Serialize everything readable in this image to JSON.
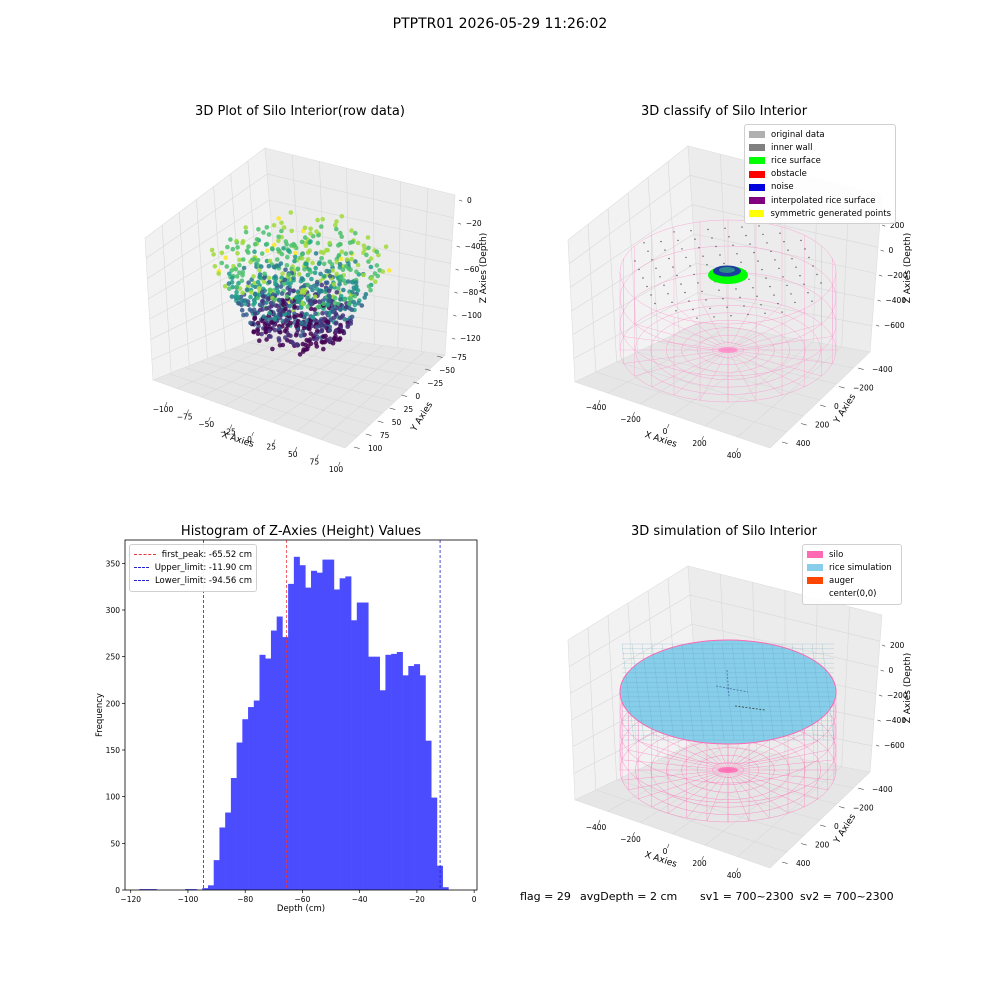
{
  "figure_title": "PTPTR01 2026-05-29 11:26:02",
  "status": {
    "flag": "flag = 29",
    "avg_depth": "avgDepth = 2 cm",
    "sv1": "sv1 = 700~2300",
    "sv2": "sv2 = 700~2300"
  },
  "colors": {
    "histogram_bar": "#4c4cff",
    "first_peak": "#e8383d",
    "limits": "#2222cc",
    "silo": "#ff69b4",
    "rice_simulation": "#87ceeb",
    "auger": "#ff4500",
    "original_data": "#b0b0b0",
    "inner_wall": "#808080",
    "rice_surface": "#00ff00",
    "obstacle": "#ff0000",
    "noise": "#0000dd",
    "interpolated_rice_surface": "#800080",
    "symmetric_generated_points": "#ffff00"
  },
  "chart_data": [
    {
      "type": "scatter",
      "title": "3D Plot of Silo Interior(row data)",
      "projection": "3d",
      "xlabel": "X Axies",
      "ylabel": "Y Axies",
      "zlabel": "Z Axies (Depth)",
      "x_ticks": [
        "−100",
        "−75",
        "−50",
        "−25",
        "0",
        "25",
        "50",
        "75",
        "100"
      ],
      "y_ticks": [
        "−75",
        "−50",
        "−25",
        "0",
        "25",
        "50",
        "75",
        "100"
      ],
      "z_ticks": [
        "0",
        "−20",
        "−40",
        "−60",
        "−80",
        "−100",
        "−120"
      ],
      "xlim": [
        -110,
        100
      ],
      "ylim": [
        -85,
        100
      ],
      "zlim": [
        -125,
        3
      ],
      "colormap": "viridis",
      "grid": true
    },
    {
      "type": "scatter",
      "title": "3D classify of Silo Interior",
      "projection": "3d",
      "xlabel": "X Axies",
      "ylabel": "Y Axies",
      "zlabel": "Z Axies (Depth)",
      "x_ticks": [
        "−400",
        "−200",
        "0",
        "200",
        "400"
      ],
      "y_ticks": [
        "−400",
        "−200",
        "0",
        "200",
        "400"
      ],
      "z_ticks": [
        "200",
        "0",
        "−200",
        "−400",
        "−600"
      ],
      "legend": [
        "original data",
        "inner wall",
        "rice surface",
        "obstacle",
        "noise",
        "interpolated rice surface",
        "symmetric generated points"
      ],
      "legend_position": "top-right",
      "grid": true
    },
    {
      "type": "bar",
      "title": "Histogram of Z-Axies (Height) Values",
      "xlabel": "Depth (cm)",
      "ylabel": "Frequency",
      "xlim": [
        -122,
        1
      ],
      "ylim": [
        0,
        375
      ],
      "x_ticks": [
        "−120",
        "−100",
        "−80",
        "−60",
        "−40",
        "−20",
        "0"
      ],
      "y_ticks": [
        "0",
        "50",
        "100",
        "150",
        "200",
        "250",
        "300",
        "350"
      ],
      "bin_start": -117,
      "bin_width": 2,
      "values": [
        1,
        1,
        1,
        0,
        0,
        0,
        0,
        0,
        1,
        1,
        0,
        2,
        5,
        32,
        67,
        83,
        120,
        158,
        183,
        196,
        203,
        252,
        248,
        278,
        293,
        271,
        328,
        357,
        348,
        324,
        342,
        340,
        354,
        354,
        322,
        334,
        336,
        289,
        308,
        308,
        250,
        250,
        214,
        252,
        253,
        255,
        230,
        240,
        242,
        230,
        160,
        99,
        26,
        3
      ],
      "reference_lines": [
        {
          "label": "first_peak: -65.52 cm",
          "x": -65.52,
          "style": "first_peak"
        },
        {
          "label": "Upper_limit: -11.90 cm",
          "x": -11.9,
          "style": "limits"
        },
        {
          "label": "Lower_limit: -94.56 cm",
          "x": -94.56,
          "style": "limits"
        }
      ],
      "legend_position": "top-left"
    },
    {
      "type": "scatter",
      "title": "3D simulation of Silo Interior",
      "projection": "3d",
      "xlabel": "X Axies",
      "ylabel": "Y Axies",
      "zlabel": "Z Axies (Depth)",
      "x_ticks": [
        "−400",
        "−200",
        "0",
        "200",
        "400"
      ],
      "y_ticks": [
        "−400",
        "−200",
        "0",
        "200",
        "400"
      ],
      "z_ticks": [
        "200",
        "0",
        "−200",
        "−400",
        "−600"
      ],
      "legend": [
        "silo",
        "rice simulation",
        "auger",
        "center(0,0)"
      ],
      "legend_position": "top-right",
      "grid": true
    }
  ]
}
